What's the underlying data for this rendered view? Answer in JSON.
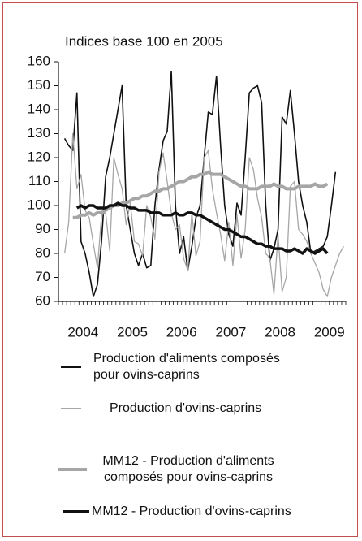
{
  "chart_data": {
    "type": "line",
    "ylabel": "Indices base 100 en 2005",
    "categories": [
      null,
      null,
      null,
      null,
      null,
      null,
      "2004",
      null,
      null,
      null,
      null,
      null,
      null,
      null,
      null,
      null,
      null,
      null,
      "2005",
      null,
      null,
      null,
      null,
      null,
      null,
      null,
      null,
      null,
      null,
      null,
      "2006",
      null,
      null,
      null,
      null,
      null,
      null,
      null,
      null,
      null,
      null,
      null,
      "2007",
      null,
      null,
      null,
      null,
      null,
      null,
      null,
      null,
      null,
      null,
      null,
      "2008",
      null,
      null,
      null,
      null,
      null,
      null,
      null,
      null,
      null,
      null,
      null,
      "2009",
      null,
      null,
      null
    ],
    "ylim": [
      60,
      160
    ],
    "yticks": [
      60,
      70,
      80,
      90,
      100,
      110,
      120,
      130,
      140,
      150,
      160
    ],
    "series": [
      {
        "name": "Production d'aliments composés pour ovins-caprins",
        "color": "#111111",
        "width": 1.6,
        "values": [
          null,
          128,
          125,
          123,
          147,
          85,
          80,
          72,
          62,
          67,
          85,
          112,
          120,
          130,
          140,
          150,
          100,
          90,
          80,
          75,
          80,
          74,
          75,
          100,
          115,
          127,
          131,
          156,
          100,
          80,
          87,
          73,
          83,
          95,
          100,
          120,
          139,
          138,
          154,
          125,
          100,
          88,
          83,
          101,
          96,
          120,
          147,
          149,
          150,
          143,
          100,
          77,
          82,
          90,
          137,
          134,
          148,
          130,
          110,
          100,
          93,
          80,
          81,
          82,
          83,
          87,
          100,
          114,
          null,
          null
        ]
      },
      {
        "name": "Production d'ovins-caprins",
        "color": "#a6a6a6",
        "width": 1.3,
        "values": [
          null,
          80,
          93,
          130,
          107,
          113,
          98,
          95,
          84,
          74,
          96,
          97,
          81,
          120,
          113,
          107,
          92,
          101,
          85,
          84,
          79,
          100,
          95,
          86,
          114,
          122,
          110,
          97,
          90,
          92,
          78,
          73,
          97,
          79,
          85,
          120,
          123,
          107,
          97,
          88,
          77,
          93,
          75,
          96,
          78,
          90,
          120,
          115,
          103,
          95,
          80,
          78,
          63,
          88,
          64,
          70,
          108,
          110,
          90,
          88,
          85,
          80,
          76,
          72,
          65,
          62,
          70,
          75,
          80,
          83
        ]
      },
      {
        "name": "MM12 - Production d'aliments composés pour ovins-caprins",
        "color": "#a6a6a6",
        "width": 4,
        "values": [
          null,
          null,
          null,
          95,
          95,
          96,
          96,
          97,
          96,
          97,
          97,
          98,
          99,
          100,
          100,
          101,
          101,
          102,
          103,
          103,
          104,
          104,
          105,
          106,
          106,
          107,
          107,
          108,
          109,
          110,
          110,
          111,
          112,
          112,
          113,
          113,
          114,
          113,
          113,
          113,
          112,
          111,
          110,
          109,
          108,
          108,
          107,
          107,
          107,
          108,
          108,
          108,
          109,
          108,
          108,
          107,
          107,
          107,
          108,
          108,
          108,
          108,
          109,
          108,
          108,
          109,
          null,
          null,
          null,
          null
        ]
      },
      {
        "name": "MM12 - Production d'ovins-caprins",
        "color": "#111111",
        "width": 3.5,
        "values": [
          null,
          null,
          null,
          null,
          99,
          100,
          99,
          100,
          100,
          99,
          99,
          99,
          100,
          100,
          101,
          100,
          100,
          99,
          99,
          98,
          98,
          98,
          97,
          97,
          97,
          96,
          96,
          96,
          97,
          96,
          96,
          97,
          97,
          96,
          96,
          95,
          94,
          93,
          92,
          91,
          90,
          90,
          89,
          88,
          87,
          87,
          86,
          85,
          84,
          84,
          83,
          83,
          82,
          82,
          82,
          81,
          81,
          82,
          81,
          80,
          82,
          81,
          80,
          81,
          82,
          80,
          null,
          null,
          null,
          null
        ]
      }
    ]
  }
}
